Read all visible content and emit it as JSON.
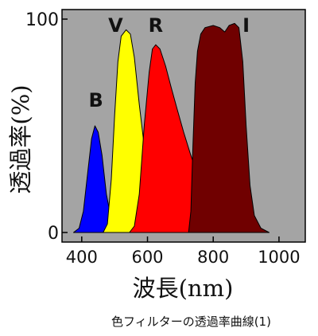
{
  "chart_data": {
    "type": "area",
    "xlabel": "波長(nm)",
    "ylabel": "透過率(%)",
    "xlim": [
      340,
      1080
    ],
    "ylim": [
      0,
      100
    ],
    "x_ticks": [
      400,
      600,
      800,
      1000
    ],
    "y_ticks": [
      0,
      100
    ],
    "x_tick_labels": [
      "400",
      "600",
      "800",
      "1000"
    ],
    "y_tick_labels": [
      "0",
      "100"
    ],
    "grid": false,
    "plot_background": "#a4a4a4",
    "series": [
      {
        "name": "B",
        "color": "#0000ff",
        "label_x": 443,
        "label_y": 59,
        "points": [
          [
            375,
            0
          ],
          [
            392,
            2
          ],
          [
            405,
            10
          ],
          [
            418,
            28
          ],
          [
            430,
            44
          ],
          [
            440,
            50
          ],
          [
            450,
            47
          ],
          [
            462,
            36
          ],
          [
            475,
            18
          ],
          [
            490,
            6
          ],
          [
            505,
            1
          ],
          [
            520,
            0
          ]
        ]
      },
      {
        "name": "V",
        "color": "#ffff00",
        "label_x": 503,
        "label_y": 94,
        "points": [
          [
            465,
            0
          ],
          [
            478,
            4
          ],
          [
            490,
            25
          ],
          [
            500,
            55
          ],
          [
            510,
            80
          ],
          [
            520,
            92
          ],
          [
            535,
            95
          ],
          [
            548,
            93
          ],
          [
            560,
            82
          ],
          [
            575,
            60
          ],
          [
            592,
            38
          ],
          [
            610,
            20
          ],
          [
            630,
            8
          ],
          [
            650,
            2
          ],
          [
            675,
            0
          ]
        ]
      },
      {
        "name": "R",
        "color": "#ff0000",
        "label_x": 625,
        "label_y": 94,
        "points": [
          [
            545,
            0
          ],
          [
            560,
            3
          ],
          [
            575,
            18
          ],
          [
            590,
            50
          ],
          [
            605,
            75
          ],
          [
            615,
            86
          ],
          [
            625,
            88
          ],
          [
            638,
            86
          ],
          [
            655,
            78
          ],
          [
            672,
            68
          ],
          [
            690,
            58
          ],
          [
            710,
            47
          ],
          [
            730,
            37
          ],
          [
            750,
            28
          ],
          [
            770,
            20
          ],
          [
            790,
            14
          ],
          [
            810,
            9
          ],
          [
            830,
            5
          ],
          [
            850,
            2
          ],
          [
            870,
            1
          ],
          [
            900,
            0
          ]
        ]
      },
      {
        "name": "I",
        "color": "#700000",
        "label_x": 900,
        "label_y": 94,
        "points": [
          [
            725,
            0
          ],
          [
            732,
            10
          ],
          [
            738,
            40
          ],
          [
            745,
            70
          ],
          [
            752,
            85
          ],
          [
            762,
            93
          ],
          [
            775,
            96
          ],
          [
            800,
            97
          ],
          [
            820,
            96
          ],
          [
            835,
            94
          ],
          [
            848,
            97
          ],
          [
            865,
            98
          ],
          [
            878,
            96
          ],
          [
            890,
            80
          ],
          [
            900,
            50
          ],
          [
            912,
            22
          ],
          [
            925,
            8
          ],
          [
            945,
            2
          ],
          [
            970,
            0
          ]
        ]
      }
    ]
  },
  "caption": "色フィルターの透過率曲線(1)"
}
